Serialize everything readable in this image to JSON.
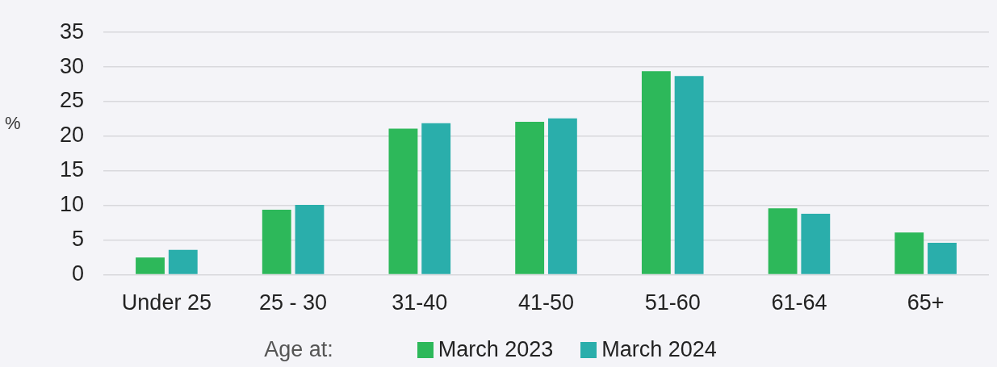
{
  "chart_data": {
    "type": "bar",
    "ylabel": "%",
    "legend_title": "Age at:",
    "categories": [
      "Under 25",
      "25 - 30",
      "31-40",
      "41-50",
      "51-60",
      "61-64",
      "65+"
    ],
    "series": [
      {
        "name": "March 2023",
        "color": "#2db85a",
        "values": [
          2.5,
          9.4,
          21.1,
          22.1,
          29.4,
          9.6,
          6.1
        ]
      },
      {
        "name": "March 2024",
        "color": "#2aaeab",
        "values": [
          3.6,
          10.1,
          21.9,
          22.6,
          28.7,
          8.8,
          4.6
        ]
      }
    ],
    "ylim": [
      0,
      35
    ],
    "yticks": [
      0,
      5,
      10,
      15,
      20,
      25,
      30,
      35
    ],
    "grid": "y",
    "legend": "bottom"
  }
}
